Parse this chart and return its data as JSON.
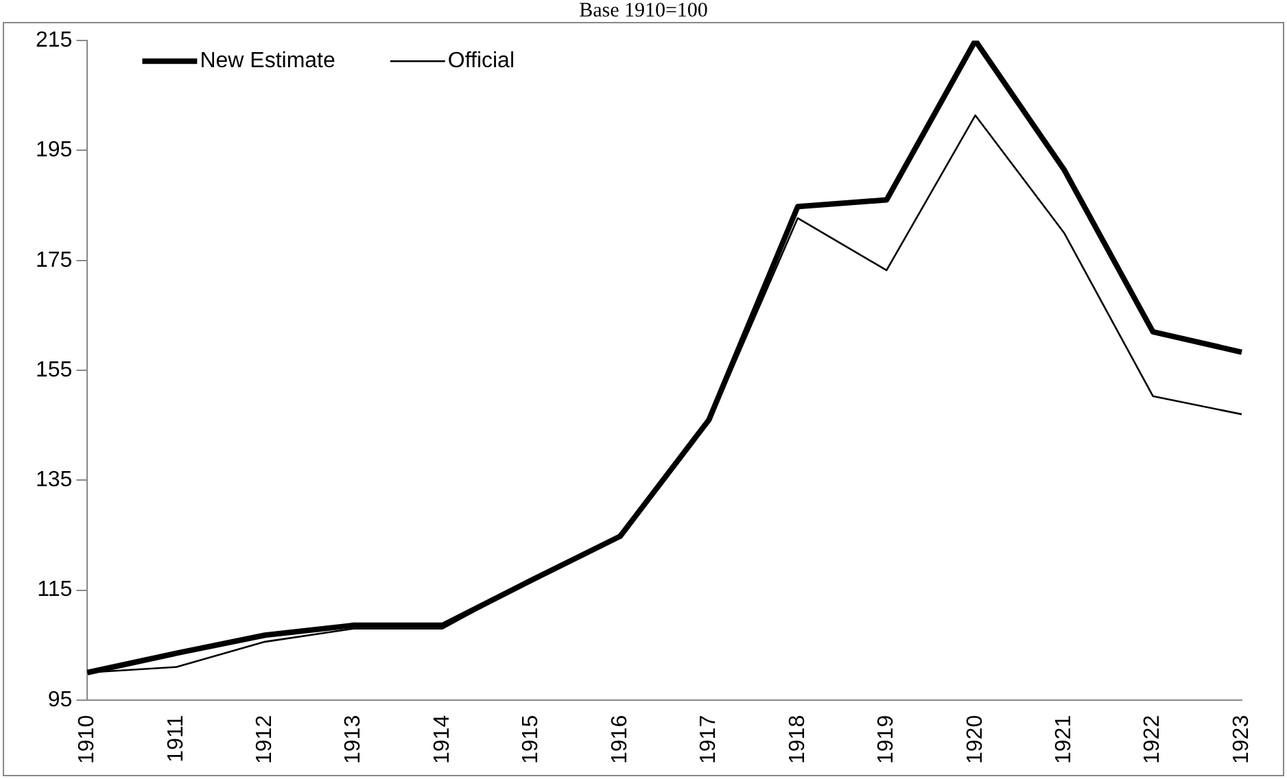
{
  "chart_data": {
    "type": "line",
    "title": "Base 1910=100",
    "categories": [
      "1910",
      "1911",
      "1912",
      "1913",
      "1914",
      "1915",
      "1916",
      "1917",
      "1918",
      "1919",
      "1920",
      "1921",
      "1922",
      "1923"
    ],
    "series": [
      {
        "name": "New Estimate",
        "color": "#000000",
        "values": [
          100,
          103.5,
          106.8,
          108.6,
          108.6,
          116.8,
          124.8,
          146,
          184.8,
          186,
          215,
          191.5,
          162,
          158.3
        ]
      },
      {
        "name": "Official",
        "color": "#000000",
        "values": [
          100,
          101,
          105.6,
          108,
          108,
          116.8,
          124.8,
          145.5,
          182.7,
          173.2,
          201.4,
          180,
          150.3,
          147
        ]
      }
    ],
    "ylim": [
      95,
      215
    ],
    "yticks": [
      95,
      115,
      135,
      155,
      175,
      195,
      215
    ],
    "grid": false,
    "legend": "top left",
    "marker": "none",
    "line_style": "solid"
  }
}
